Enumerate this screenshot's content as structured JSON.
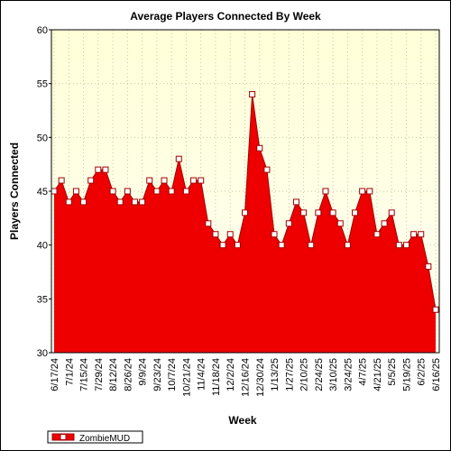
{
  "chart_data": {
    "type": "area",
    "title": "Average Players Connected By Week",
    "x_label": "Week",
    "y_label": "Players Connected",
    "categories": [
      "6/17/24",
      null,
      "7/1/24",
      null,
      "7/15/24",
      null,
      "7/29/24",
      null,
      "8/12/24",
      null,
      "8/26/24",
      null,
      "9/9/24",
      null,
      "9/23/24",
      null,
      "10/7/24",
      null,
      "10/21/24",
      null,
      "11/4/24",
      null,
      "11/18/24",
      null,
      "12/2/24",
      null,
      "12/16/24",
      null,
      "12/30/24",
      null,
      "1/13/25",
      null,
      "1/27/25",
      null,
      "2/10/25",
      null,
      "2/24/25",
      null,
      "3/10/25",
      null,
      "3/24/25",
      null,
      "4/7/25",
      null,
      "4/21/25",
      null,
      "5/5/25",
      null,
      "5/19/25",
      null,
      "6/2/25",
      null,
      "6/16/25"
    ],
    "series": [
      {
        "name": "ZombieMUD",
        "color": "#ee0000",
        "line_color": "#a00000",
        "values": [
          45,
          46,
          44,
          45,
          44,
          46,
          47,
          47,
          45,
          44,
          45,
          44,
          44,
          46,
          45,
          46,
          45,
          48,
          45,
          46,
          46,
          42,
          41,
          40,
          41,
          40,
          43,
          54,
          49,
          47,
          41,
          40,
          42,
          44,
          43,
          40,
          43,
          45,
          43,
          42,
          40,
          43,
          45,
          45,
          41,
          42,
          43,
          40,
          40,
          41,
          41,
          38,
          34
        ]
      }
    ],
    "ylim": [
      30,
      60
    ],
    "yticks": [
      30,
      35,
      40,
      45,
      50,
      55,
      60
    ],
    "grid": true,
    "legend": "bottom-left"
  }
}
